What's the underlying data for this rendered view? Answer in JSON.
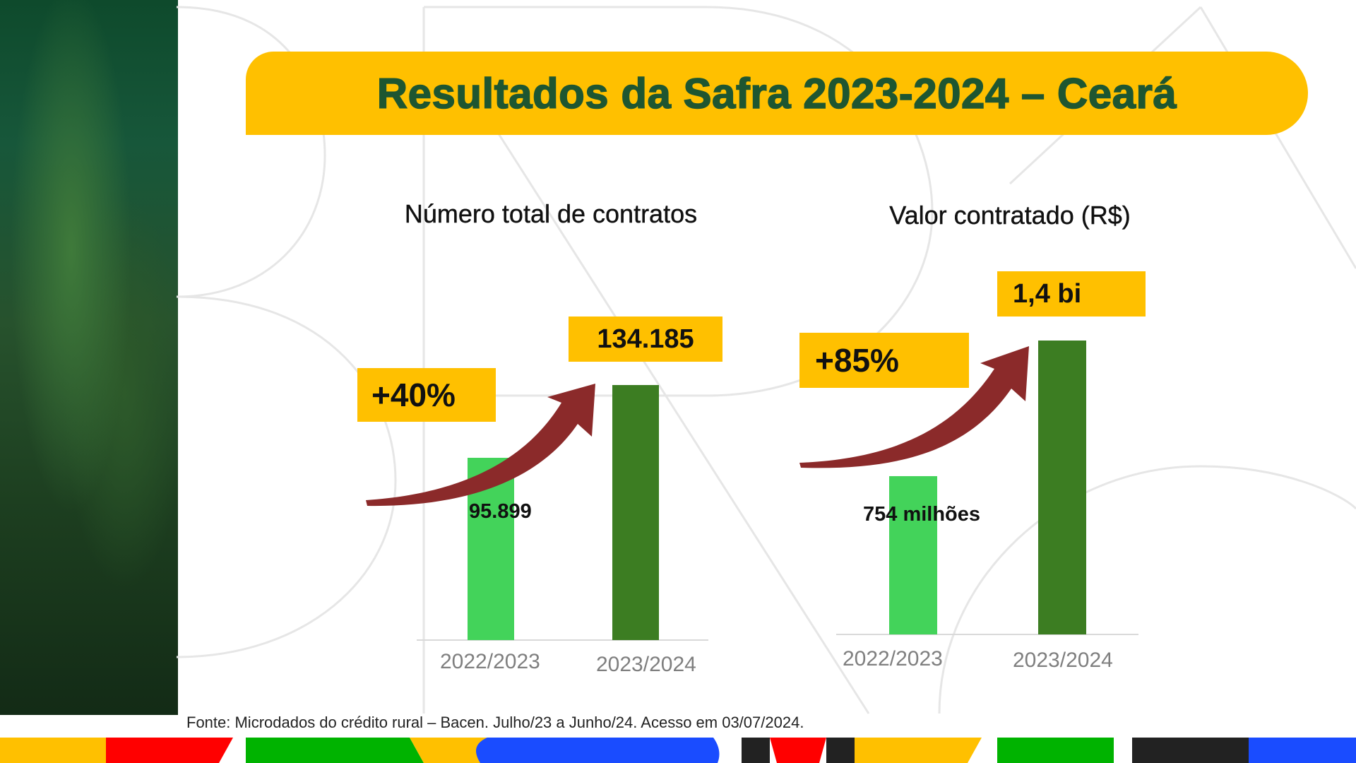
{
  "title": "Resultados da Safra 2023-2024 – Ceará",
  "source_note": "Fonte: Microdados do crédito rural – Bacen. Julho/23 a Junho/24. Acesso em 03/07/2024.",
  "colors": {
    "banner": "#ffc000",
    "title_text": "#1e5631",
    "bar_2022_2023": "#43d35a",
    "bar_2023_2024": "#3c7d22",
    "arrow": "#8b2a2a"
  },
  "chart_data": [
    {
      "type": "bar",
      "title": "Número total de contratos",
      "categories": [
        "2022/2023",
        "2023/2024"
      ],
      "values": [
        95899,
        134185
      ],
      "data_labels": [
        "95.899",
        "134.185"
      ],
      "growth_label": "+40%",
      "grid": false,
      "legend": "none"
    },
    {
      "type": "bar",
      "title": "Valor contratado (R$)",
      "categories": [
        "2022/2023",
        "2023/2024"
      ],
      "values": [
        754000000,
        1400000000
      ],
      "data_labels": [
        "754 milhões",
        "1,4 bi"
      ],
      "growth_label": "+85%",
      "grid": false,
      "legend": "none"
    }
  ]
}
